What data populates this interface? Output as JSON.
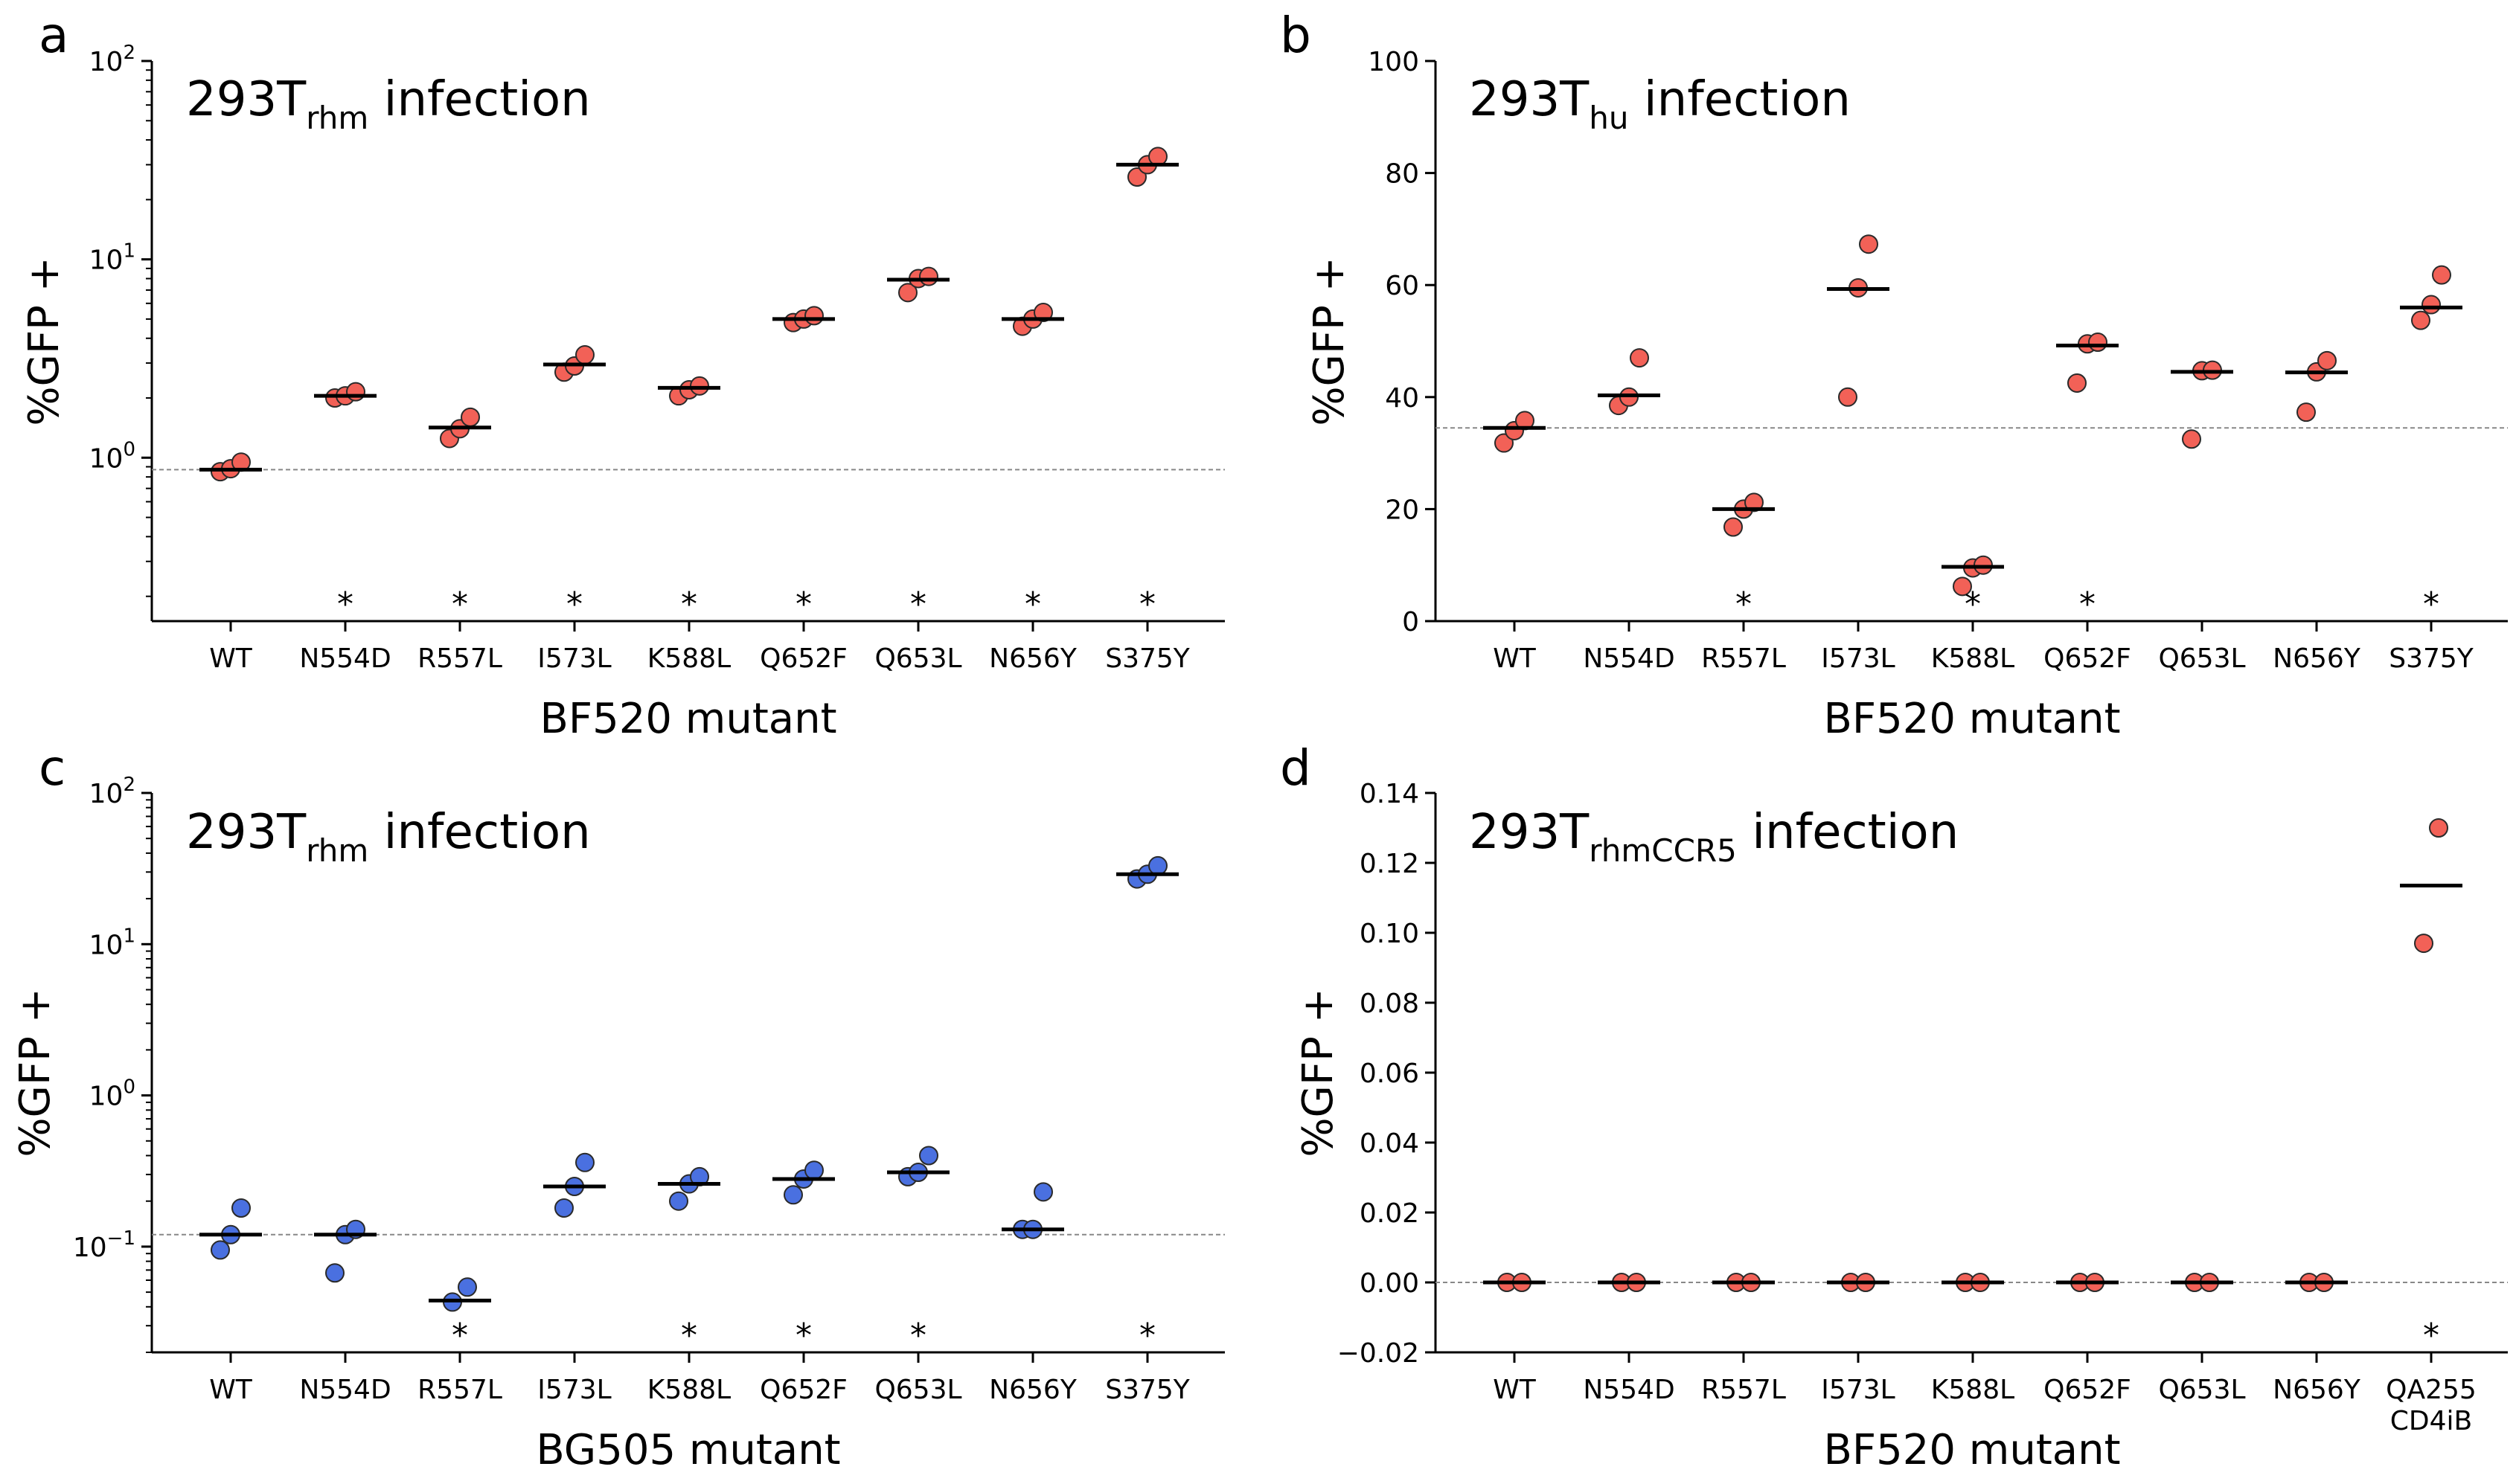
{
  "figure": {
    "panels": [
      {
        "letter": "a",
        "title": {
          "main": "293T",
          "sub": "rhm",
          "tail": " infection"
        },
        "ylabel": "%GFP +",
        "xlabel": "BF520 mutant",
        "color": "#f26157"
      },
      {
        "letter": "b",
        "title": {
          "main": "293T",
          "sub": "hu",
          "tail": " infection"
        },
        "ylabel": "%GFP +",
        "xlabel": "BF520 mutant",
        "color": "#f26157"
      },
      {
        "letter": "c",
        "title": {
          "main": "293T",
          "sub": "rhm",
          "tail": " infection"
        },
        "ylabel": "%GFP +",
        "xlabel": "BG505 mutant",
        "color": "#4a70e0"
      },
      {
        "letter": "d",
        "title": {
          "main": "293T",
          "sub": "rhmCCR5",
          "tail": " infection"
        },
        "ylabel": "%GFP +",
        "xlabel": "BF520 mutant",
        "color": "#f26157"
      }
    ]
  },
  "chart_data": [
    {
      "panel": "a",
      "type": "scatter",
      "yscale": "log",
      "ylim": [
        0.15,
        100
      ],
      "yticks": [
        {
          "value": 1,
          "exp": "0"
        },
        {
          "value": 10,
          "exp": "1"
        },
        {
          "value": 100,
          "exp": "2"
        }
      ],
      "categories": [
        "WT",
        "N554D",
        "R557L",
        "I573L",
        "K588L",
        "Q652F",
        "Q653L",
        "N656Y",
        "S375Y"
      ],
      "replicates": [
        [
          0.85,
          0.88,
          0.95
        ],
        [
          2.0,
          2.05,
          2.15
        ],
        [
          1.25,
          1.4,
          1.6
        ],
        [
          2.7,
          2.9,
          3.3
        ],
        [
          2.05,
          2.2,
          2.3
        ],
        [
          4.8,
          5.0,
          5.2
        ],
        [
          6.8,
          8.0,
          8.2
        ],
        [
          4.6,
          5.0,
          5.4
        ],
        [
          26.0,
          30.0,
          33.0
        ]
      ],
      "means": [
        0.87,
        2.05,
        1.42,
        2.95,
        2.25,
        5.0,
        7.9,
        5.0,
        30.0
      ],
      "baseline": 0.87,
      "significant": [
        false,
        true,
        true,
        true,
        true,
        true,
        true,
        true,
        true
      ],
      "star_label": "*"
    },
    {
      "panel": "b",
      "type": "scatter",
      "yscale": "linear",
      "ylim": [
        0,
        100
      ],
      "yticks": [
        {
          "value": 0,
          "label": "0"
        },
        {
          "value": 20,
          "label": "20"
        },
        {
          "value": 40,
          "label": "40"
        },
        {
          "value": 60,
          "label": "60"
        },
        {
          "value": 80,
          "label": "80"
        },
        {
          "value": 100,
          "label": "100"
        }
      ],
      "categories": [
        "WT",
        "N554D",
        "R557L",
        "I573L",
        "K588L",
        "Q652F",
        "Q653L",
        "N656Y",
        "S375Y"
      ],
      "replicates": [
        [
          31.8,
          34.0,
          35.8
        ],
        [
          38.5,
          40.0,
          47.0
        ],
        [
          16.8,
          20.0,
          21.2
        ],
        [
          40.0,
          59.5,
          67.3
        ],
        [
          6.2,
          9.5,
          10.0
        ],
        [
          42.5,
          49.5,
          49.8
        ],
        [
          32.5,
          44.7,
          44.8
        ],
        [
          37.3,
          44.5,
          46.5
        ],
        [
          53.7,
          56.5,
          61.8
        ]
      ],
      "means": [
        34.5,
        40.3,
        20.0,
        59.3,
        9.7,
        49.2,
        44.5,
        44.4,
        56.0
      ],
      "baseline": 34.5,
      "significant": [
        false,
        false,
        true,
        false,
        true,
        true,
        false,
        false,
        true
      ],
      "star_label": "*"
    },
    {
      "panel": "c",
      "type": "scatter",
      "yscale": "log",
      "ylim": [
        0.02,
        100
      ],
      "yticks": [
        {
          "value": 0.1,
          "exp": "−1"
        },
        {
          "value": 1,
          "exp": "0"
        },
        {
          "value": 10,
          "exp": "1"
        },
        {
          "value": 100,
          "exp": "2"
        }
      ],
      "categories": [
        "WT",
        "N554D",
        "R557L",
        "I573L",
        "K588L",
        "Q652F",
        "Q653L",
        "N656Y",
        "S375Y"
      ],
      "replicates": [
        [
          0.095,
          0.12,
          0.18
        ],
        [
          0.067,
          0.12,
          0.13
        ],
        [
          0.043,
          0.054
        ],
        [
          0.18,
          0.25,
          0.36
        ],
        [
          0.2,
          0.26,
          0.29
        ],
        [
          0.22,
          0.28,
          0.32
        ],
        [
          0.29,
          0.31,
          0.4
        ],
        [
          0.13,
          0.13,
          0.23
        ],
        [
          27.0,
          29.0,
          33.0
        ]
      ],
      "means": [
        0.12,
        0.12,
        0.044,
        0.25,
        0.26,
        0.28,
        0.31,
        0.13,
        29.0
      ],
      "baseline": 0.12,
      "significant": [
        false,
        false,
        true,
        false,
        true,
        true,
        true,
        false,
        true
      ],
      "star_label": "*"
    },
    {
      "panel": "d",
      "type": "scatter",
      "yscale": "linear",
      "ylim": [
        -0.02,
        0.14
      ],
      "yticks": [
        {
          "value": -0.02,
          "label": "−0.02"
        },
        {
          "value": 0.0,
          "label": "0.00"
        },
        {
          "value": 0.02,
          "label": "0.02"
        },
        {
          "value": 0.04,
          "label": "0.04"
        },
        {
          "value": 0.06,
          "label": "0.06"
        },
        {
          "value": 0.08,
          "label": "0.08"
        },
        {
          "value": 0.1,
          "label": "0.10"
        },
        {
          "value": 0.12,
          "label": "0.12"
        },
        {
          "value": 0.14,
          "label": "0.14"
        }
      ],
      "categories": [
        "WT",
        "N554D",
        "R557L",
        "I573L",
        "K588L",
        "Q652F",
        "Q653L",
        "N656Y",
        "QA255\nCD4iB"
      ],
      "replicates": [
        [
          0,
          0
        ],
        [
          0,
          0
        ],
        [
          0,
          0
        ],
        [
          0,
          0
        ],
        [
          0,
          0
        ],
        [
          0,
          0
        ],
        [
          0,
          0
        ],
        [
          0,
          0
        ],
        [
          0.097,
          0.13
        ]
      ],
      "means": [
        0,
        0,
        0,
        0,
        0,
        0,
        0,
        0,
        0.1135
      ],
      "baseline": 0,
      "significant": [
        false,
        false,
        false,
        false,
        false,
        false,
        false,
        false,
        true
      ],
      "star_label": "*"
    }
  ]
}
